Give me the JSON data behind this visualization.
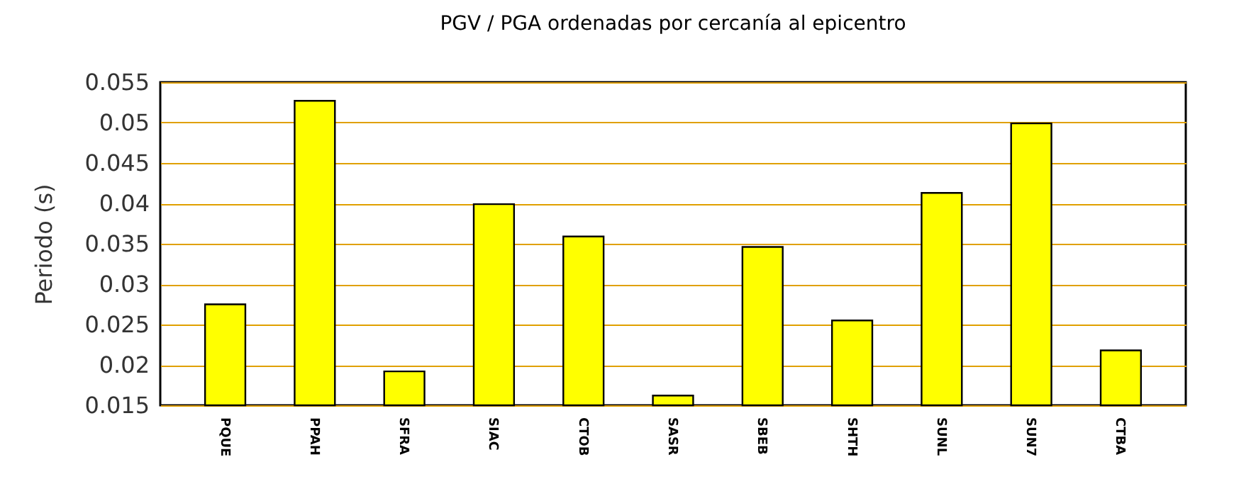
{
  "chart_data": {
    "type": "bar",
    "title": "PGV / PGA ordenadas por cercanía al epicentro",
    "ylabel": "Periodo (s)",
    "categories": [
      "PQUE",
      "PPAH",
      "SFRA",
      "SIAC",
      "CTOB",
      "SASR",
      "SBEB",
      "SHTH",
      "SUNL",
      "SUN7",
      "CTBA"
    ],
    "values": [
      0.0275,
      0.0527,
      0.0192,
      0.0399,
      0.0359,
      0.0162,
      0.0346,
      0.0255,
      0.0413,
      0.0499,
      0.0218
    ],
    "color": "#ffff00",
    "ylim": [
      0.015,
      0.055
    ],
    "yticks": [
      0.015,
      0.02,
      0.025,
      0.03,
      0.035,
      0.04,
      0.045,
      0.05,
      0.055
    ],
    "grid": "y"
  }
}
